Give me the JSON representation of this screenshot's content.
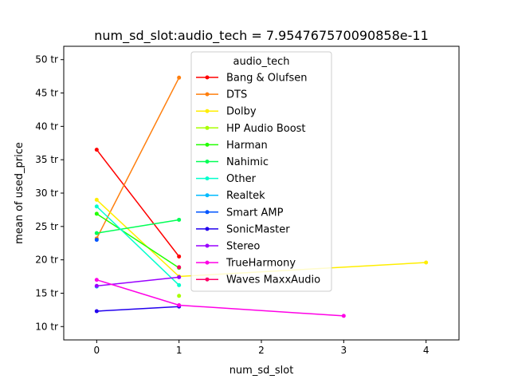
{
  "chart_data": {
    "type": "line",
    "title": "num_sd_slot:audio_tech = 7.954767570090858e-11",
    "xlabel": "num_sd_slot",
    "ylabel": "mean of used_price",
    "xlim": [
      -0.4,
      4.4
    ],
    "ylim": [
      8,
      52
    ],
    "xticks": [
      0,
      1,
      2,
      3,
      4
    ],
    "xtick_labels": [
      "0",
      "1",
      "2",
      "3",
      "4"
    ],
    "yticks": [
      10,
      15,
      20,
      25,
      30,
      35,
      40,
      45,
      50
    ],
    "ytick_labels": [
      "10 tr",
      "15 tr",
      "20 tr",
      "25 tr",
      "30 tr",
      "35 tr",
      "40 tr",
      "45 tr",
      "50 tr"
    ],
    "grid": false,
    "legend_title": "audio_tech",
    "legend_position": "top-center",
    "series": [
      {
        "name": "Bang & Olufsen",
        "color": "#ff0000",
        "x": [
          0,
          1
        ],
        "y": [
          36.5,
          20.5
        ]
      },
      {
        "name": "DTS",
        "color": "#ff7f0e",
        "x": [
          0,
          1
        ],
        "y": [
          23.2,
          47.3
        ]
      },
      {
        "name": "Dolby",
        "color": "#ffee00",
        "x": [
          0,
          1,
          4
        ],
        "y": [
          29.0,
          17.5,
          19.6
        ]
      },
      {
        "name": "HP Audio Boost",
        "color": "#a8ff00",
        "x": [
          1
        ],
        "y": [
          14.6
        ]
      },
      {
        "name": "Harman",
        "color": "#22ff00",
        "x": [
          0,
          1
        ],
        "y": [
          26.9,
          18.8
        ]
      },
      {
        "name": "Nahimic",
        "color": "#00ff55",
        "x": [
          0,
          1
        ],
        "y": [
          24.0,
          26.0
        ]
      },
      {
        "name": "Other",
        "color": "#00ffcc",
        "x": [
          0,
          1
        ],
        "y": [
          28.0,
          16.2
        ]
      },
      {
        "name": "Realtek",
        "color": "#00bbff",
        "x": [
          0
        ],
        "y": [
          16.0
        ]
      },
      {
        "name": "Smart AMP",
        "color": "#0055ff",
        "x": [
          0
        ],
        "y": [
          23.0
        ]
      },
      {
        "name": "SonicMaster",
        "color": "#2200ee",
        "x": [
          0,
          1
        ],
        "y": [
          12.3,
          13.0
        ]
      },
      {
        "name": "Stereo",
        "color": "#9900ff",
        "x": [
          0,
          1
        ],
        "y": [
          16.1,
          17.4
        ]
      },
      {
        "name": "TrueHarmony",
        "color": "#ff00e6",
        "x": [
          0,
          1,
          3
        ],
        "y": [
          17.0,
          13.2,
          11.6
        ]
      },
      {
        "name": "Waves MaxxAudio",
        "color": "#ff0066",
        "x": [
          1
        ],
        "y": [
          18.9
        ]
      }
    ]
  }
}
